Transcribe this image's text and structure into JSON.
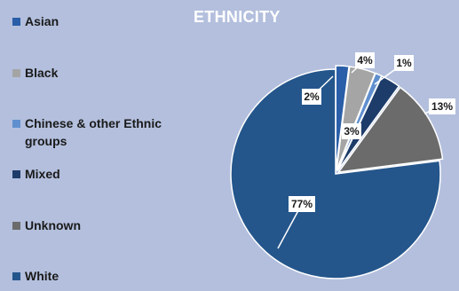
{
  "chart_data": {
    "type": "pie",
    "title": "ETHNICITY",
    "categories": [
      "Asian",
      "Black",
      "Chinese & other Ethnic groups",
      "Mixed",
      "Unknown",
      "White"
    ],
    "values": [
      2,
      4,
      1,
      3,
      13,
      77
    ],
    "labels": [
      "2%",
      "4%",
      "1%",
      "3%",
      "13%",
      "77%"
    ],
    "colors": [
      "#2a5ea8",
      "#a5a5a5",
      "#5f8fcf",
      "#1e3c6a",
      "#6b6b6b",
      "#24568c"
    ],
    "legend_position": "left"
  }
}
